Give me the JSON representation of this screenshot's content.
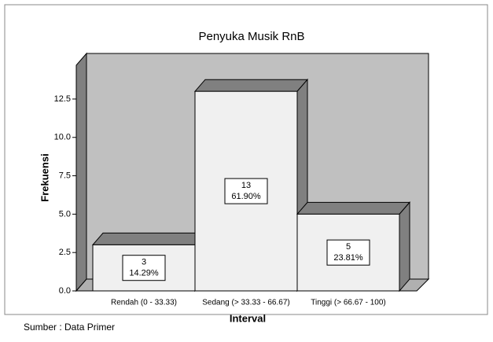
{
  "chart_data": {
    "type": "bar3d",
    "title": "Penyuka Musik RnB",
    "categories": [
      "Rendah (0 - 33.33)",
      "Sedang (> 33.33 - 66.67)",
      "Tinggi (> 66.67 - 100)"
    ],
    "values": [
      3,
      13,
      5
    ],
    "percentages": [
      14.29,
      61.9,
      23.81
    ],
    "percentage_labels": [
      "14.29%",
      "61.90%",
      "23.81%"
    ],
    "x_label": "Interval",
    "y_label": "Frekuensi",
    "ylim": [
      0,
      14.7
    ],
    "yticks": [
      {
        "value": 0,
        "label": "0.0"
      },
      2.5,
      {
        "value": 5,
        "label": "5.0"
      },
      7.5,
      {
        "value": 10,
        "label": "10.0"
      },
      12.5
    ],
    "color": "#f0f0f0",
    "side_color": "#808080",
    "source": "Sumber : Data Primer"
  }
}
